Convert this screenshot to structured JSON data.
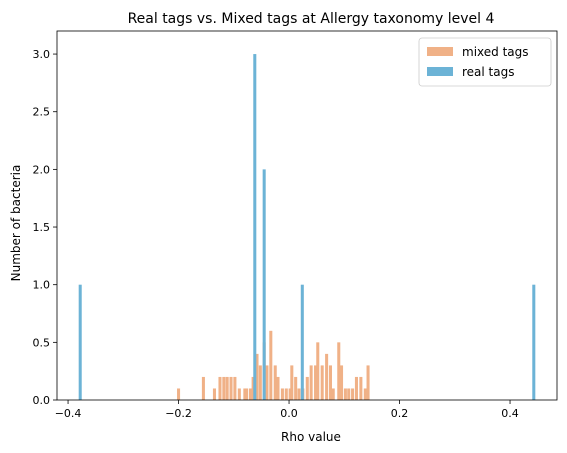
{
  "chart_data": {
    "type": "bar",
    "title": "Real tags vs. Mixed tags at Allergy taxonomy level 4",
    "xlabel": "Rho value",
    "ylabel": "Number of bacteria",
    "xlim": [
      -0.42,
      0.485
    ],
    "ylim": [
      0,
      3.2
    ],
    "xticks": [
      -0.4,
      -0.2,
      0.0,
      0.2,
      0.4
    ],
    "xtick_labels": [
      "−0.4",
      "−0.2",
      "0.0",
      "0.2",
      "0.4"
    ],
    "yticks": [
      0.0,
      0.5,
      1.0,
      1.5,
      2.0,
      2.5,
      3.0
    ],
    "ytick_labels": [
      "0.0",
      "0.5",
      "1.0",
      "1.5",
      "2.0",
      "2.5",
      "3.0"
    ],
    "grid": false,
    "legend_position": "top-right",
    "series": [
      {
        "name": "mixed tags",
        "color": "#f0b187",
        "bar_width": 0.0055,
        "points": [
          [
            -0.2,
            0.1
          ],
          [
            -0.155,
            0.2
          ],
          [
            -0.135,
            0.1
          ],
          [
            -0.125,
            0.2
          ],
          [
            -0.118,
            0.2
          ],
          [
            -0.112,
            0.2
          ],
          [
            -0.105,
            0.2
          ],
          [
            -0.098,
            0.2
          ],
          [
            -0.09,
            0.1
          ],
          [
            -0.08,
            0.1
          ],
          [
            -0.077,
            0.1
          ],
          [
            -0.07,
            0.1
          ],
          [
            -0.065,
            0.2
          ],
          [
            -0.058,
            0.4
          ],
          [
            -0.052,
            0.3
          ],
          [
            -0.045,
            0.5
          ],
          [
            -0.04,
            0.3
          ],
          [
            -0.033,
            0.6
          ],
          [
            -0.025,
            0.3
          ],
          [
            -0.02,
            0.2
          ],
          [
            -0.012,
            0.1
          ],
          [
            -0.005,
            0.1
          ],
          [
            0.002,
            0.1
          ],
          [
            0.005,
            0.3
          ],
          [
            0.012,
            0.2
          ],
          [
            0.018,
            0.1
          ],
          [
            0.025,
            0.1
          ],
          [
            0.033,
            0.2
          ],
          [
            0.04,
            0.3
          ],
          [
            0.048,
            0.3
          ],
          [
            0.052,
            0.5
          ],
          [
            0.06,
            0.3
          ],
          [
            0.068,
            0.4
          ],
          [
            0.075,
            0.3
          ],
          [
            0.08,
            0.1
          ],
          [
            0.09,
            0.5
          ],
          [
            0.095,
            0.3
          ],
          [
            0.102,
            0.1
          ],
          [
            0.108,
            0.1
          ],
          [
            0.115,
            0.1
          ],
          [
            0.122,
            0.2
          ],
          [
            0.13,
            0.2
          ],
          [
            0.138,
            0.1
          ],
          [
            0.143,
            0.3
          ]
        ]
      },
      {
        "name": "real tags",
        "color": "#6cb3d6",
        "bar_width": 0.0055,
        "points": [
          [
            -0.378,
            1.0
          ],
          [
            -0.062,
            3.0
          ],
          [
            -0.045,
            2.0
          ],
          [
            0.024,
            1.0
          ],
          [
            0.443,
            1.0
          ]
        ]
      }
    ]
  }
}
